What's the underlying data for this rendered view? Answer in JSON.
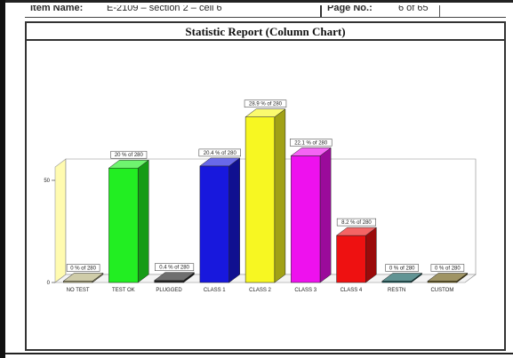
{
  "header": {
    "item_name_label": "Item Name:",
    "item_name_value": "E-2109 – section 2 – cell 6",
    "page_no_label": "Page No.:",
    "page_no_value": "6 of 65"
  },
  "report": {
    "title": "Statistic Report (Column Chart)"
  },
  "chart_data": {
    "type": "bar",
    "title": "",
    "xlabel": "",
    "ylabel": "",
    "ylim": [
      0,
      100
    ],
    "yticks": [
      0,
      50
    ],
    "categories": [
      "NO TEST",
      "TEST OK",
      "PLUGGED",
      "CLASS 1",
      "CLASS 2",
      "CLASS 3",
      "CLASS 4",
      "RESTN",
      "CUSTOM"
    ],
    "values": [
      0,
      56,
      1,
      57,
      81,
      62,
      23,
      0,
      0
    ],
    "data_labels": [
      "0 % of 280",
      "20 % of 280",
      "0.4 % of 280",
      "20.4 % of 280",
      "28.9 % of 280",
      "22.1 % of 280",
      "8.2 % of 280",
      "0 % of 280",
      "0 % of 280"
    ],
    "colors": [
      "#b5b07a",
      "#22ee22",
      "#222222",
      "#1818dd",
      "#f7f722",
      "#ee11ee",
      "#ee1111",
      "#0c5a5a",
      "#6b5a10"
    ],
    "grid": false,
    "legend": "none",
    "style": "3d-column",
    "wall_color": "#fffbb0"
  }
}
